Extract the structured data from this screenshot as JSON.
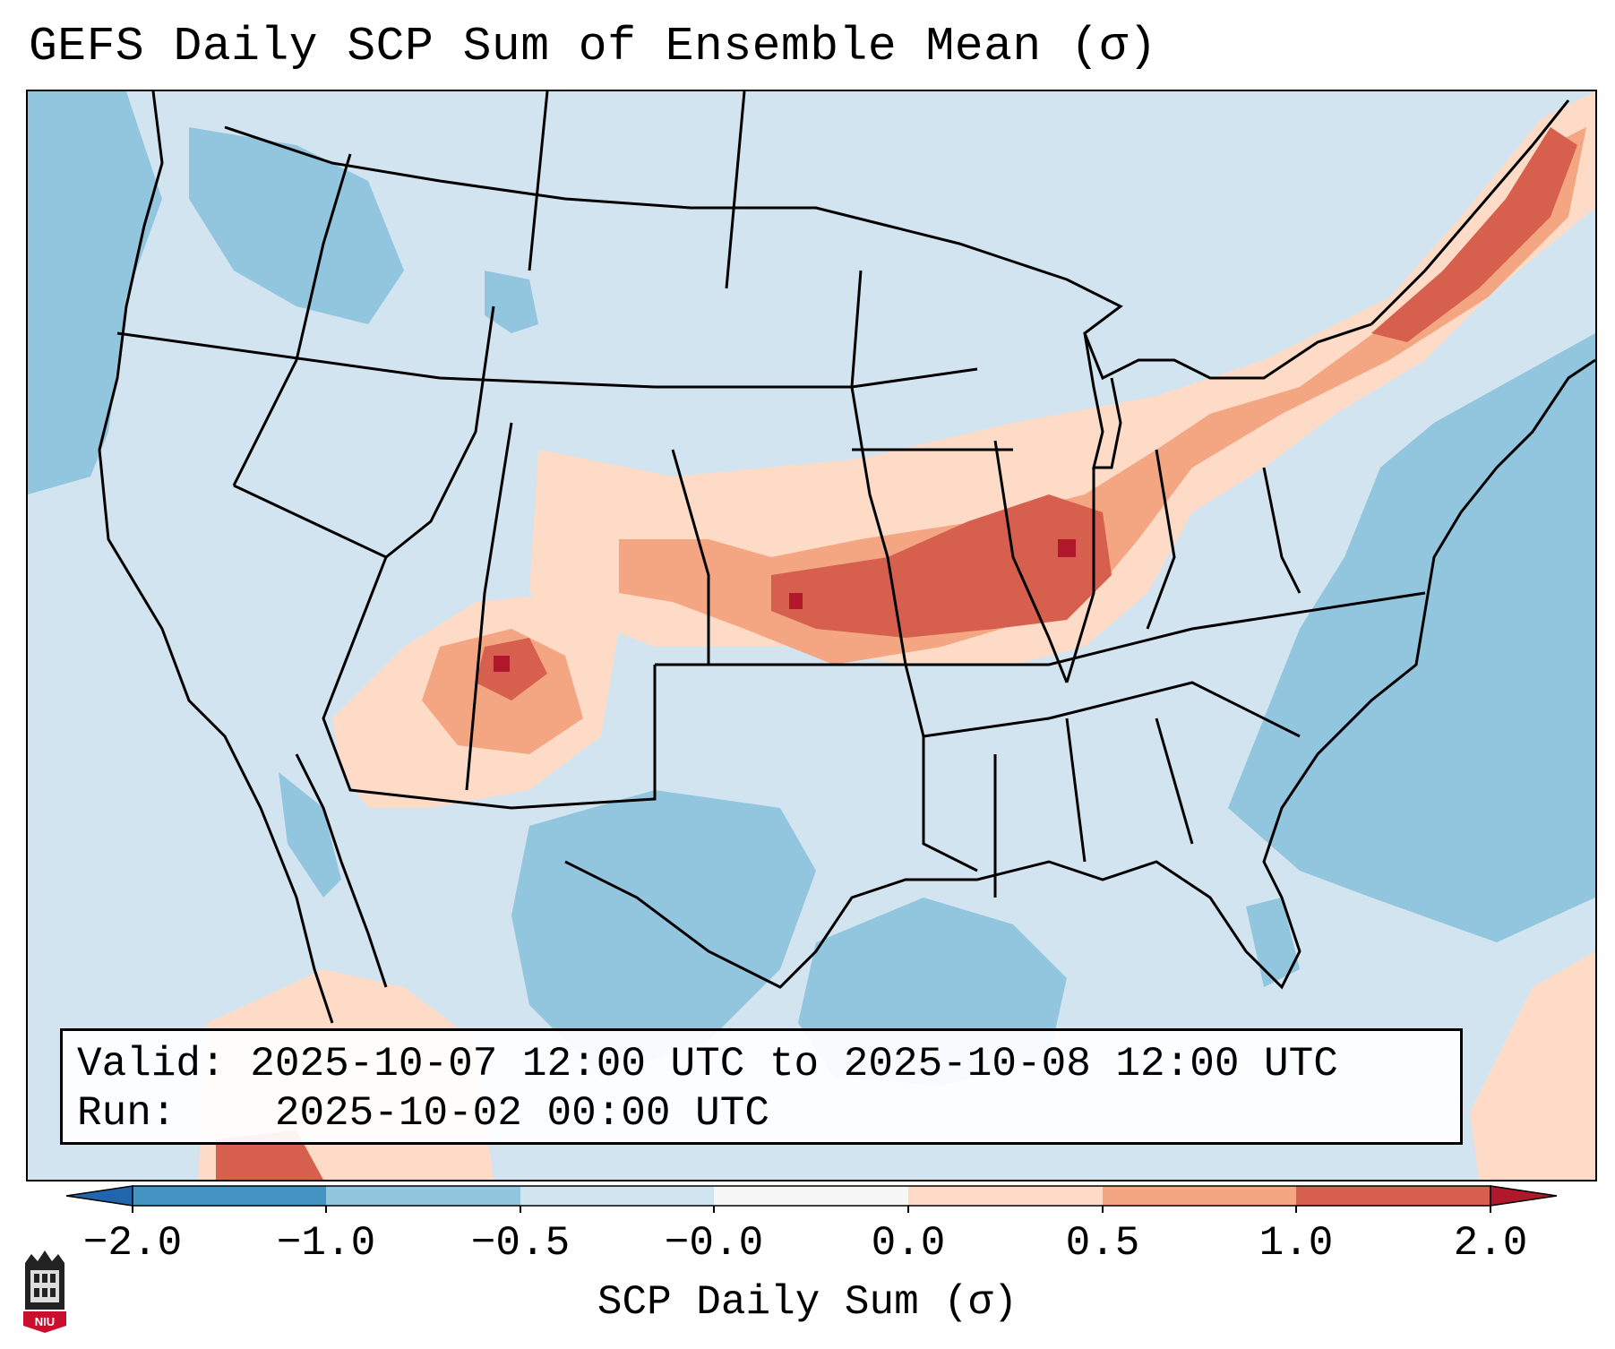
{
  "title": "GEFS Daily SCP Sum of Ensemble Mean (σ)",
  "info": {
    "valid_label": "Valid:",
    "valid_value": "2025-10-07 12:00 UTC to 2025-10-08 12:00 UTC",
    "run_label": "Run:",
    "run_value": "2025-10-02 00:00 UTC"
  },
  "colorbar": {
    "label": "SCP Daily Sum (σ)",
    "ticks": [
      "−2.0",
      "−1.0",
      "−0.5",
      "−0.0",
      "0.0",
      "0.5",
      "1.0",
      "2.0"
    ],
    "bins": [
      {
        "range": "< -2.0",
        "color": "#2166ac"
      },
      {
        "range": "-2.0 to -1.0",
        "color": "#4393c3"
      },
      {
        "range": "-1.0 to -0.5",
        "color": "#92c5de"
      },
      {
        "range": "-0.5 to -0.0",
        "color": "#d1e5f0"
      },
      {
        "range": "-0.0 to 0.0",
        "color": "#f7f7f7"
      },
      {
        "range": "0.0 to 0.5",
        "color": "#fddbc7"
      },
      {
        "range": "0.5 to 1.0",
        "color": "#f4a582"
      },
      {
        "range": "1.0 to 2.0",
        "color": "#d6604d"
      },
      {
        "range": "> 2.0",
        "color": "#b2182b"
      }
    ]
  },
  "regions": [
    {
      "name": "central-plains-midwest-maximum",
      "level": "1.0 to 2.0"
    },
    {
      "name": "four-corners-maximum",
      "level": "1.0 to 2.0"
    },
    {
      "name": "great-lakes-to-new-england",
      "level": "0.5 to 1.0"
    },
    {
      "name": "gulf-and-atlantic-waters",
      "level": "-1.0 to -0.5"
    }
  ],
  "logo": {
    "text": "NIU"
  },
  "colors": {
    "frame": "#000000",
    "background": "#ffffff"
  }
}
